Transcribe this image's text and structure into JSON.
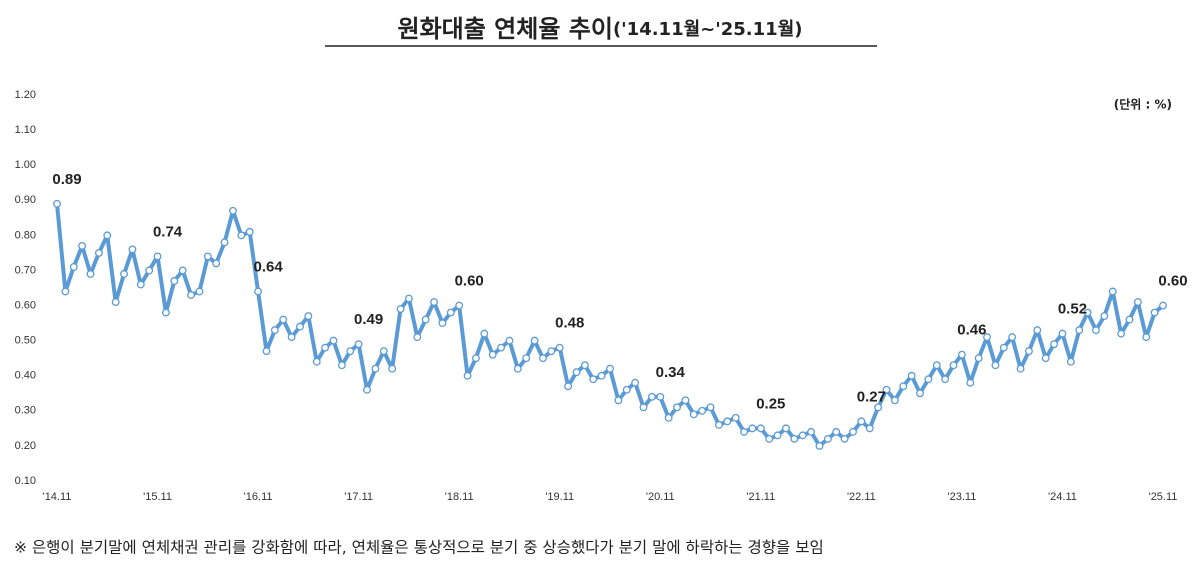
{
  "chart_data": {
    "type": "line",
    "title": "원화대출 연체율 추이",
    "title_range": "('14.11월~'25.11월)",
    "unit": "(단위 : %)",
    "note": "※ 은행이 분기말에 연체채권 관리를 강화함에 따라, 연체율은 통상적으로 분기 중 상승했다가 분기 말에 하락하는 경향을 보임",
    "categories": [
      "'14.11",
      null,
      null,
      null,
      null,
      null,
      null,
      null,
      null,
      null,
      null,
      null,
      "'15.11",
      null,
      null,
      null,
      null,
      null,
      null,
      null,
      null,
      null,
      null,
      null,
      "'16.11",
      null,
      null,
      null,
      null,
      null,
      null,
      null,
      null,
      null,
      null,
      null,
      "'17.11",
      null,
      null,
      null,
      null,
      null,
      null,
      null,
      null,
      null,
      null,
      null,
      "'18.11",
      null,
      null,
      null,
      null,
      null,
      null,
      null,
      null,
      null,
      null,
      null,
      "'19.11",
      null,
      null,
      null,
      null,
      null,
      null,
      null,
      null,
      null,
      null,
      null,
      "'20.11",
      null,
      null,
      null,
      null,
      null,
      null,
      null,
      null,
      null,
      null,
      null,
      "'21.11",
      null,
      null,
      null,
      null,
      null,
      null,
      null,
      null,
      null,
      null,
      null,
      "'22.11",
      null,
      null,
      null,
      null,
      null,
      null,
      null,
      null,
      null,
      null,
      null,
      "'23.11",
      null,
      null,
      null,
      null,
      null,
      null,
      null,
      null,
      null,
      null,
      null,
      "'24.11",
      null,
      null,
      null,
      null,
      null,
      null,
      null,
      null,
      null,
      null,
      null,
      "'25.11"
    ],
    "values": [
      0.89,
      0.64,
      0.71,
      0.77,
      0.69,
      0.75,
      0.8,
      0.61,
      0.69,
      0.76,
      0.66,
      0.7,
      0.74,
      0.58,
      0.67,
      0.7,
      0.63,
      0.64,
      0.74,
      0.72,
      0.78,
      0.87,
      0.8,
      0.81,
      0.64,
      0.47,
      0.53,
      0.56,
      0.51,
      0.54,
      0.57,
      0.44,
      0.48,
      0.5,
      0.43,
      0.47,
      0.49,
      0.36,
      0.42,
      0.47,
      0.42,
      0.59,
      0.62,
      0.51,
      0.56,
      0.61,
      0.55,
      0.58,
      0.6,
      0.4,
      0.45,
      0.52,
      0.46,
      0.48,
      0.5,
      0.42,
      0.45,
      0.5,
      0.45,
      0.47,
      0.48,
      0.37,
      0.41,
      0.43,
      0.39,
      0.4,
      0.42,
      0.33,
      0.36,
      0.38,
      0.31,
      0.34,
      0.34,
      0.28,
      0.31,
      0.33,
      0.29,
      0.3,
      0.31,
      0.26,
      0.27,
      0.28,
      0.24,
      0.25,
      0.25,
      0.22,
      0.23,
      0.25,
      0.22,
      0.23,
      0.24,
      0.2,
      0.22,
      0.24,
      0.22,
      0.24,
      0.27,
      0.25,
      0.31,
      0.36,
      0.33,
      0.37,
      0.4,
      0.35,
      0.39,
      0.43,
      0.39,
      0.43,
      0.46,
      0.38,
      0.45,
      0.51,
      0.43,
      0.48,
      0.51,
      0.42,
      0.47,
      0.53,
      0.45,
      0.49,
      0.52,
      0.44,
      0.53,
      0.58,
      0.53,
      0.57,
      0.64,
      0.52,
      0.56,
      0.61,
      0.51,
      0.58,
      0.6
    ],
    "value_labels": [
      "0.89",
      null,
      null,
      null,
      null,
      null,
      null,
      null,
      null,
      null,
      null,
      null,
      "0.74",
      null,
      null,
      null,
      null,
      null,
      null,
      null,
      null,
      null,
      null,
      null,
      "0.64",
      null,
      null,
      null,
      null,
      null,
      null,
      null,
      null,
      null,
      null,
      null,
      "0.49",
      null,
      null,
      null,
      null,
      null,
      null,
      null,
      null,
      null,
      null,
      null,
      "0.60",
      null,
      null,
      null,
      null,
      null,
      null,
      null,
      null,
      null,
      null,
      null,
      "0.48",
      null,
      null,
      null,
      null,
      null,
      null,
      null,
      null,
      null,
      null,
      null,
      "0.34",
      null,
      null,
      null,
      null,
      null,
      null,
      null,
      null,
      null,
      null,
      null,
      "0.25",
      null,
      null,
      null,
      null,
      null,
      null,
      null,
      null,
      null,
      null,
      null,
      "0.27",
      null,
      null,
      null,
      null,
      null,
      null,
      null,
      null,
      null,
      null,
      null,
      "0.46",
      null,
      null,
      null,
      null,
      null,
      null,
      null,
      null,
      null,
      null,
      null,
      "0.52",
      null,
      null,
      null,
      null,
      null,
      null,
      null,
      null,
      null,
      null,
      null,
      "0.60"
    ],
    "color": "#5b9bd5",
    "ylim": [
      0.1,
      1.2
    ],
    "yticks": [
      {
        "value": 0.1,
        "label": "0.10"
      },
      {
        "value": 0.2,
        "label": "0.20"
      },
      {
        "value": 0.3,
        "label": "0.30"
      },
      {
        "value": 0.4,
        "label": "0.40"
      },
      {
        "value": 0.5,
        "label": "0.50"
      },
      {
        "value": 0.6,
        "label": "0.60"
      },
      {
        "value": 0.7,
        "label": "0.70"
      },
      {
        "value": 0.8,
        "label": "0.80"
      },
      {
        "value": 0.9,
        "label": "0.90"
      },
      {
        "value": 1.0,
        "label": "1.00"
      },
      {
        "value": 1.1,
        "label": "1.10"
      },
      {
        "value": 1.2,
        "label": "1.20"
      }
    ],
    "grid": false
  }
}
